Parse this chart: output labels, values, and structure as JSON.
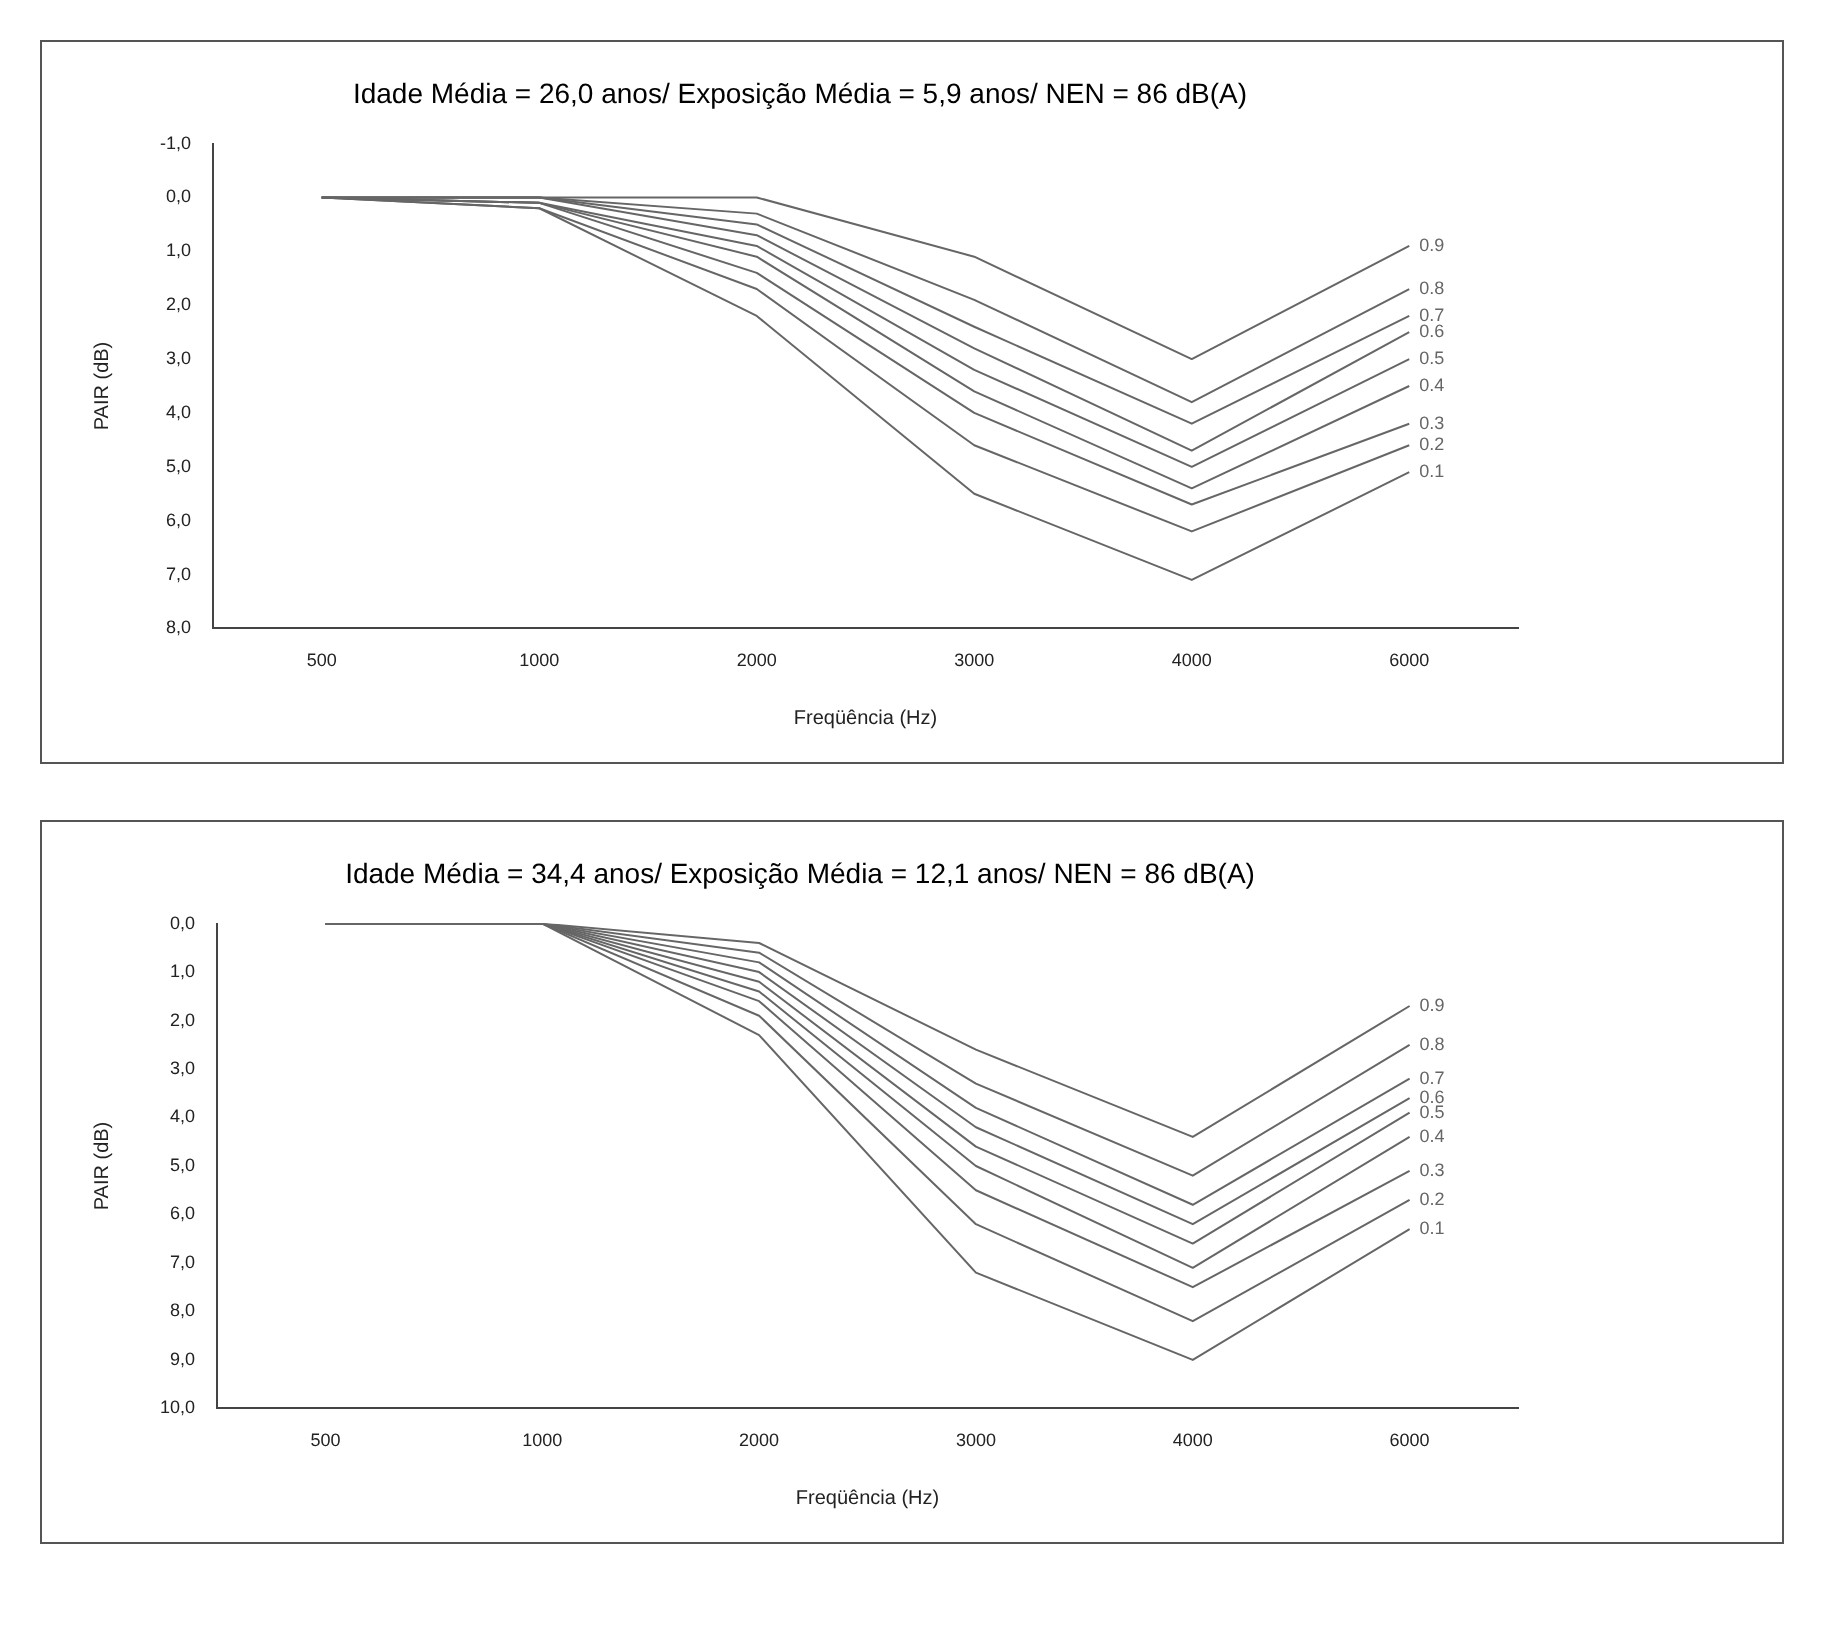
{
  "chart_data": [
    {
      "type": "line",
      "title": "Idade Média = 26,0 anos/ Exposição Média = 5,9 anos/ NEN = 86 dB(A)",
      "xlabel": "Freqüência (Hz)",
      "ylabel": "PAIR (dB)",
      "categories": [
        "500",
        "1000",
        "2000",
        "3000",
        "4000",
        "6000"
      ],
      "ylim": [
        8,
        -1
      ],
      "yticks": [
        {
          "value": -1,
          "label": "-1,0"
        },
        {
          "value": 0,
          "label": "0,0"
        },
        {
          "value": 1,
          "label": "1,0"
        },
        {
          "value": 2,
          "label": "2,0"
        },
        {
          "value": 3,
          "label": "3,0"
        },
        {
          "value": 4,
          "label": "4,0"
        },
        {
          "value": 5,
          "label": "5,0"
        },
        {
          "value": 6,
          "label": "6,0"
        },
        {
          "value": 7,
          "label": "7,0"
        },
        {
          "value": 8,
          "label": "8,0"
        }
      ],
      "grid": false,
      "legend": false,
      "marker": "none",
      "line_style": "solid",
      "series": [
        {
          "name": "0.9",
          "color": "#666666",
          "values": [
            0,
            0,
            0,
            1.1,
            3.0,
            0.9
          ]
        },
        {
          "name": "0.8",
          "color": "#666666",
          "values": [
            0,
            0,
            0.3,
            1.9,
            3.8,
            1.7
          ]
        },
        {
          "name": "0.7",
          "color": "#666666",
          "values": [
            0,
            0,
            0.5,
            2.4,
            4.2,
            2.2
          ]
        },
        {
          "name": "0.6",
          "color": "#666666",
          "values": [
            0,
            0,
            0.7,
            2.8,
            4.7,
            2.5
          ]
        },
        {
          "name": "0.5",
          "color": "#666666",
          "values": [
            0,
            0.1,
            0.9,
            3.2,
            5.0,
            3.0
          ]
        },
        {
          "name": "0.4",
          "color": "#666666",
          "values": [
            0,
            0.1,
            1.1,
            3.6,
            5.4,
            3.5
          ]
        },
        {
          "name": "0.3",
          "color": "#666666",
          "values": [
            0,
            0.1,
            1.4,
            4.0,
            5.7,
            4.2
          ]
        },
        {
          "name": "0.2",
          "color": "#666666",
          "values": [
            0,
            0.2,
            1.7,
            4.6,
            6.2,
            4.6
          ]
        },
        {
          "name": "0.1",
          "color": "#666666",
          "values": [
            0,
            0.2,
            2.2,
            5.5,
            7.1,
            5.1
          ]
        }
      ]
    },
    {
      "type": "line",
      "title": "Idade Média = 34,4 anos/ Exposição Média = 12,1 anos/ NEN = 86 dB(A)",
      "xlabel": "Freqüência (Hz)",
      "ylabel": "PAIR (dB)",
      "categories": [
        "500",
        "1000",
        "2000",
        "3000",
        "4000",
        "6000"
      ],
      "ylim": [
        10,
        0
      ],
      "yticks": [
        {
          "value": 0,
          "label": "0,0"
        },
        {
          "value": 1,
          "label": "1,0"
        },
        {
          "value": 2,
          "label": "2,0"
        },
        {
          "value": 3,
          "label": "3,0"
        },
        {
          "value": 4,
          "label": "4,0"
        },
        {
          "value": 5,
          "label": "5,0"
        },
        {
          "value": 6,
          "label": "6,0"
        },
        {
          "value": 7,
          "label": "7,0"
        },
        {
          "value": 8,
          "label": "8,0"
        },
        {
          "value": 9,
          "label": "9,0"
        },
        {
          "value": 10,
          "label": "10,0"
        }
      ],
      "grid": false,
      "legend": false,
      "marker": "none",
      "line_style": "solid",
      "series": [
        {
          "name": "0.9",
          "color": "#666666",
          "values": [
            0,
            0,
            0.4,
            2.6,
            4.4,
            1.7
          ]
        },
        {
          "name": "0.8",
          "color": "#666666",
          "values": [
            0,
            0,
            0.6,
            3.3,
            5.2,
            2.5
          ]
        },
        {
          "name": "0.7",
          "color": "#666666",
          "values": [
            0,
            0,
            0.8,
            3.8,
            5.8,
            3.2
          ]
        },
        {
          "name": "0.6",
          "color": "#666666",
          "values": [
            0,
            0,
            1.0,
            4.2,
            6.2,
            3.6
          ]
        },
        {
          "name": "0.5",
          "color": "#666666",
          "values": [
            0,
            0,
            1.2,
            4.6,
            6.6,
            3.9
          ]
        },
        {
          "name": "0.4",
          "color": "#666666",
          "values": [
            0,
            0,
            1.4,
            5.0,
            7.1,
            4.4
          ]
        },
        {
          "name": "0.3",
          "color": "#666666",
          "values": [
            0,
            0,
            1.6,
            5.5,
            7.5,
            5.1
          ]
        },
        {
          "name": "0.2",
          "color": "#666666",
          "values": [
            0,
            0,
            1.9,
            6.2,
            8.2,
            5.7
          ]
        },
        {
          "name": "0.1",
          "color": "#666666",
          "values": [
            0,
            0,
            2.3,
            7.2,
            9.0,
            6.3
          ]
        }
      ]
    }
  ]
}
